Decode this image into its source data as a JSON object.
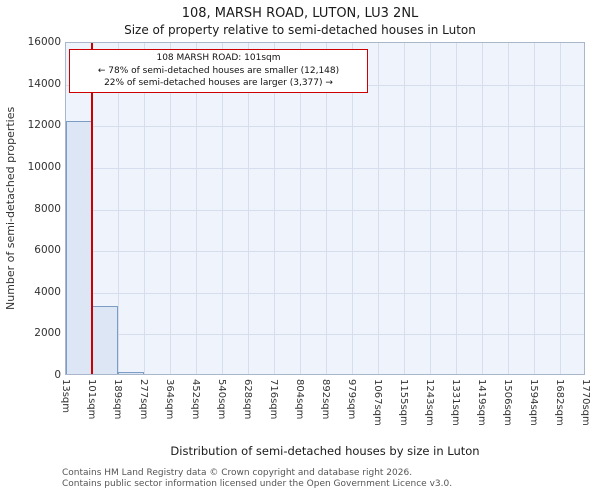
{
  "chart_data": {
    "type": "bar",
    "title": "108, MARSH ROAD, LUTON, LU3 2NL",
    "subtitle": "Size of property relative to semi-detached houses in Luton",
    "xlabel": "Distribution of semi-detached houses by size in Luton",
    "ylabel": "Number of semi-detached properties",
    "categories": [
      "13sqm",
      "101sqm",
      "189sqm",
      "277sqm",
      "364sqm",
      "452sqm",
      "540sqm",
      "628sqm",
      "716sqm",
      "804sqm",
      "892sqm",
      "979sqm",
      "1067sqm",
      "1155sqm",
      "1243sqm",
      "1331sqm",
      "1419sqm",
      "1506sqm",
      "1594sqm",
      "1682sqm",
      "1770sqm"
    ],
    "values": [
      12148,
      3280,
      97,
      0,
      0,
      0,
      0,
      0,
      0,
      0,
      0,
      0,
      0,
      0,
      0,
      0,
      0,
      0,
      0,
      0
    ],
    "ylim": [
      0,
      16000
    ],
    "ytick_step": 2000,
    "grid": true,
    "bar_fill": "#dce6f4",
    "bar_border": "#7d9cc4",
    "plot_bg": "#eff3fb",
    "grid_color": "#d6deee",
    "marker": {
      "x_label": "101sqm",
      "color": "#cc0000"
    },
    "annotation": {
      "line1": "108 MARSH ROAD: 101sqm",
      "line2": "← 78% of semi-detached houses are smaller (12,148)",
      "line3": "22% of semi-detached houses are larger (3,377) →",
      "border_color": "#cc0000"
    }
  },
  "footer": {
    "line1": "Contains HM Land Registry data © Crown copyright and database right 2026.",
    "line2": "Contains public sector information licensed under the Open Government Licence v3.0."
  }
}
